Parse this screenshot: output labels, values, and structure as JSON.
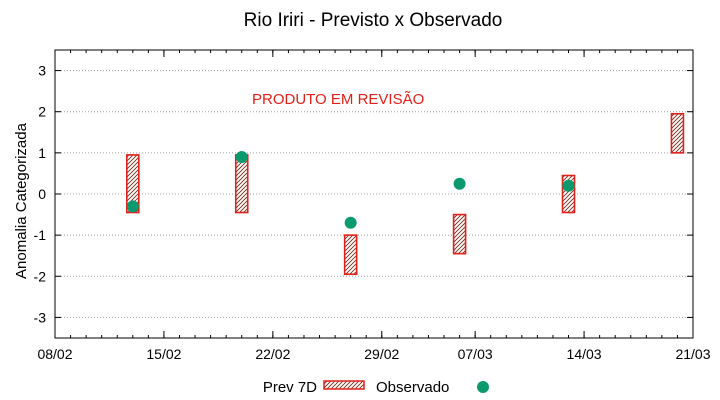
{
  "chart_data": {
    "type": "scatter",
    "title": "Rio Iriri - Previsto x Observado",
    "ylabel": "Anomalia Categorizada",
    "xlabel": "",
    "annotation": "PRODUTO EM REVISÃO",
    "x_range": [
      "2023-02-08",
      "2023-03-21"
    ],
    "ylim": [
      -3.5,
      3.5
    ],
    "x_ticks": [
      {
        "date": "2023-02-08",
        "label": "08/02"
      },
      {
        "date": "2023-02-15",
        "label": "15/02"
      },
      {
        "date": "2023-02-22",
        "label": "22/02"
      },
      {
        "date": "2023-03-01",
        "label": "29/02"
      },
      {
        "date": "2023-03-07",
        "label": "07/03"
      },
      {
        "date": "2023-03-14",
        "label": "14/03"
      },
      {
        "date": "2023-03-21",
        "label": "21/03"
      }
    ],
    "y_ticks": [
      {
        "value": 3,
        "label": "3"
      },
      {
        "value": 2,
        "label": "2"
      },
      {
        "value": 1,
        "label": "1"
      },
      {
        "value": 0,
        "label": "0"
      },
      {
        "value": -1,
        "label": "-1"
      },
      {
        "value": -2,
        "label": "-2"
      },
      {
        "value": -3,
        "label": "-3"
      }
    ],
    "grid": true,
    "legend_position": "bottom",
    "series": [
      {
        "name": "Prev 7D",
        "kind": "range",
        "color": "#e0201a",
        "points": [
          {
            "date": "2023-02-13",
            "low": -0.45,
            "high": 0.95
          },
          {
            "date": "2023-02-20",
            "low": -0.45,
            "high": 0.95
          },
          {
            "date": "2023-02-27",
            "low": -1.95,
            "high": -1.0
          },
          {
            "date": "2023-03-06",
            "low": -1.45,
            "high": -0.5
          },
          {
            "date": "2023-03-13",
            "low": -0.45,
            "high": 0.45
          },
          {
            "date": "2023-03-20",
            "low": 1.0,
            "high": 1.95
          }
        ]
      },
      {
        "name": "Observado",
        "kind": "point",
        "color": "#0a9a6e",
        "points": [
          {
            "date": "2023-02-13",
            "value": -0.3
          },
          {
            "date": "2023-02-20",
            "value": 0.9
          },
          {
            "date": "2023-02-27",
            "value": -0.7
          },
          {
            "date": "2023-03-06",
            "value": 0.25
          },
          {
            "date": "2023-03-13",
            "value": 0.2
          }
        ]
      }
    ]
  }
}
